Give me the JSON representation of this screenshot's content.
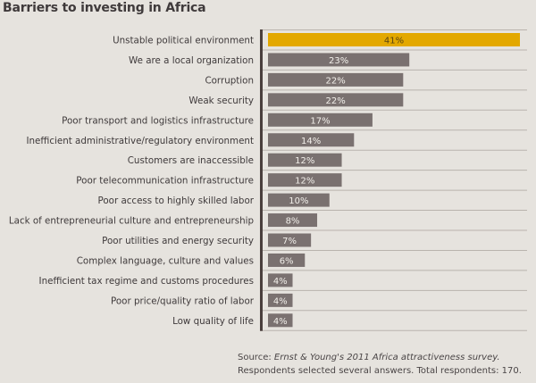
{
  "chart_data": {
    "type": "bar",
    "orientation": "horizontal",
    "title": "Barriers to investing in Africa",
    "xlabel": "",
    "ylabel": "",
    "unit": "%",
    "xlim": [
      0,
      41
    ],
    "grid": false,
    "highlight_color": "#e3a800",
    "bar_color": "#7a7170",
    "axis_color": "#4a3f3d",
    "categories": [
      "Unstable political environment",
      "We are a local organization",
      "Corruption",
      "Weak security",
      "Poor transport and logistics infrastructure",
      "Inefficient administrative/regulatory environment",
      "Customers are inaccessible",
      "Poor telecommunication infrastructure",
      "Poor access to highly skilled labor",
      "Lack of entrepreneurial culture and entrepreneurship",
      "Poor utilities and energy security",
      "Complex language, culture and values",
      "Inefficient tax regime and customs procedures",
      "Poor price/quality ratio of labor",
      "Low quality of life"
    ],
    "values": [
      41,
      23,
      22,
      22,
      17,
      14,
      12,
      12,
      10,
      8,
      7,
      6,
      4,
      4,
      4
    ],
    "value_labels": [
      "41%",
      "23%",
      "22%",
      "22%",
      "17%",
      "14%",
      "12%",
      "12%",
      "10%",
      "8%",
      "7%",
      "6%",
      "4%",
      "4%",
      "4%"
    ],
    "highlighted_index": 0
  },
  "source": {
    "prefix": "Source: ",
    "italic": "Ernst & Young's 2011 Africa attractiveness survey.",
    "line2": "Respondents selected several answers. Total respondents: 170."
  }
}
